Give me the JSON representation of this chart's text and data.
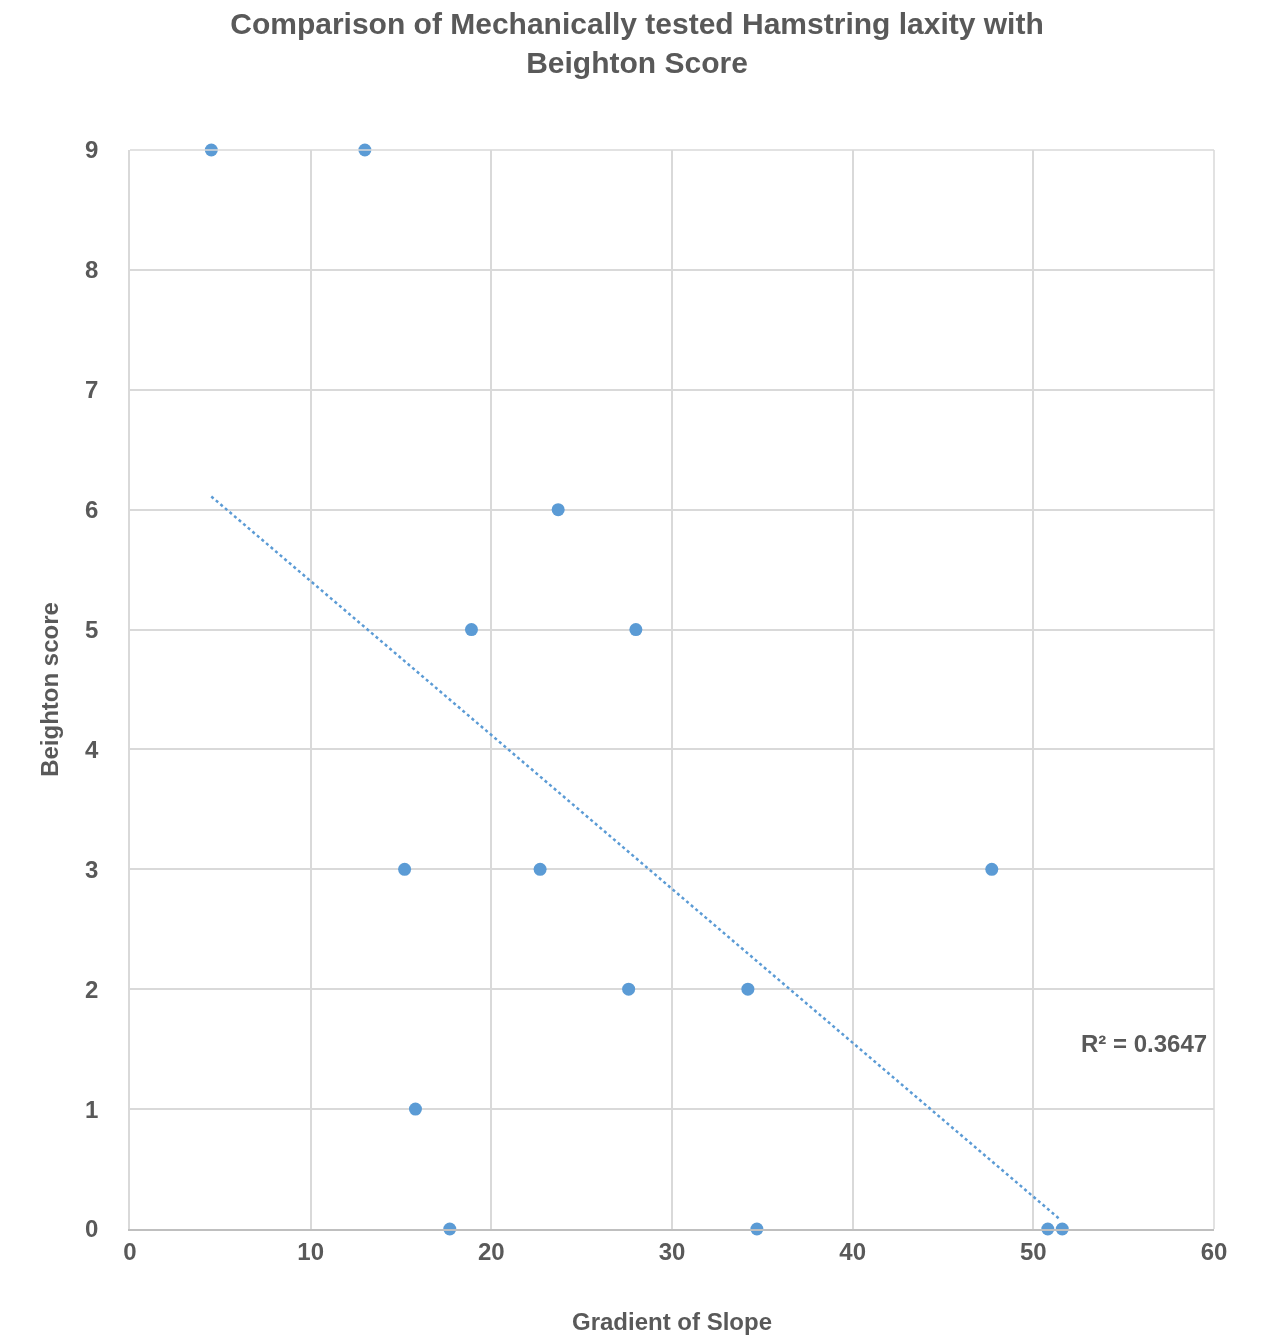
{
  "chart_data": {
    "type": "scatter",
    "title": "Comparison of Mechanically tested Hamstring laxity with Beighton Score",
    "xlabel": "Gradient of Slope",
    "ylabel": "Beighton score",
    "series": [
      {
        "color": "#5b9bd5",
        "marker": "circle",
        "x": [
          4.5,
          13.0,
          23.7,
          18.9,
          28.0,
          15.2,
          22.7,
          47.7,
          27.6,
          34.2,
          15.8,
          17.7,
          34.7,
          50.8,
          51.6
        ],
        "values": [
          9,
          9,
          6,
          5,
          5,
          3,
          3,
          3,
          2,
          2,
          1,
          0,
          0,
          0,
          0
        ]
      },
      {
        "type": "line",
        "color": "#5b9bd5",
        "line_style": "dotted",
        "x": [
          4.5,
          51.4
        ],
        "values": [
          6.11,
          0.09
        ]
      }
    ],
    "annotations": [
      "R² = 0.3647"
    ],
    "xlim": [
      0,
      60
    ],
    "xticks": [
      0,
      10,
      20,
      30,
      40,
      50,
      60
    ],
    "ylim": [
      0,
      9
    ],
    "yticks": [
      0,
      1,
      2,
      3,
      4,
      5,
      6,
      7,
      8,
      9
    ],
    "grid": true
  }
}
